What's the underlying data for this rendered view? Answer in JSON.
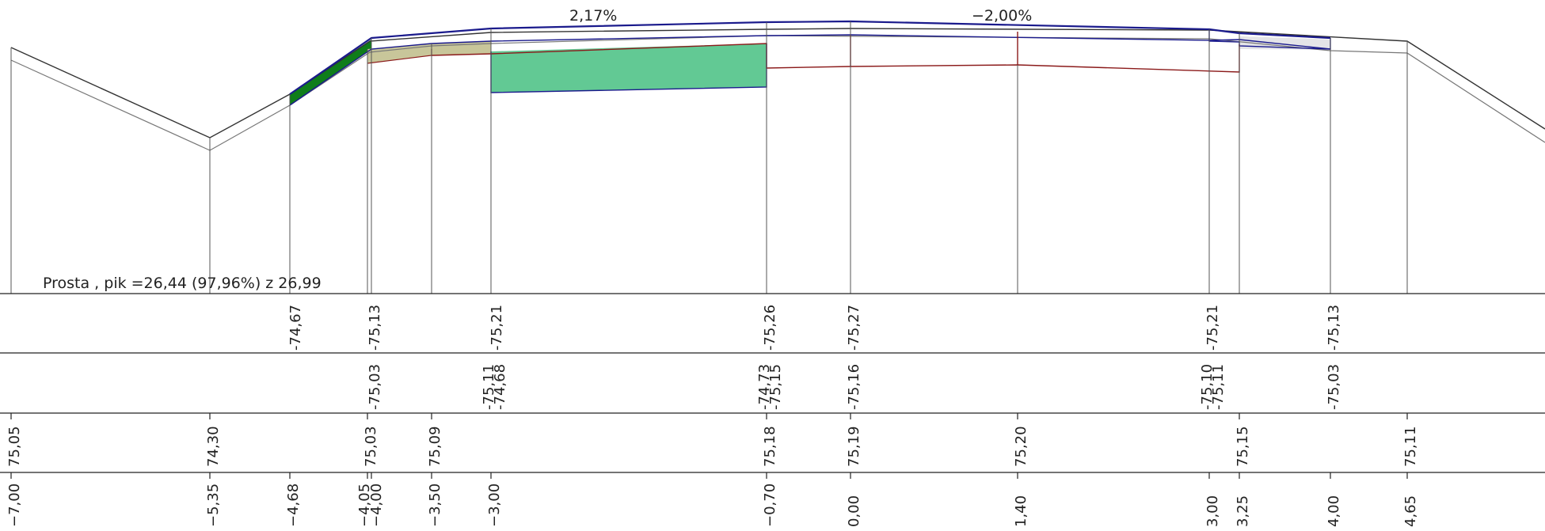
{
  "header": {
    "slope_left": "2,17%",
    "slope_right": "−2,00%",
    "section_info": "Prosta , pik =26,44 (97,96%)  z 26,99"
  },
  "rows": {
    "row1": [
      "-74,67",
      "-75,13",
      "-75,21",
      "-75,26",
      "-75,27",
      "-75,21",
      "-75,13"
    ],
    "row2": [
      "-75,03",
      "-75,11",
      "-74,68",
      "-74,73",
      "-75,15",
      "-75,16",
      "-75,10",
      "-75,11",
      "-75,03"
    ],
    "row3": [
      "75,05",
      "74,30",
      "75,03",
      "75,09",
      "75,18",
      "75,19",
      "75,20",
      "75,15",
      "75,11"
    ],
    "row4": [
      "−7,00",
      "−5,35",
      "−4,68",
      "−4,05",
      "−4,00",
      "−3,50",
      "−3,00",
      "−0,70",
      "0,00",
      "1,40",
      "3,00",
      "3,25",
      "4,00",
      "4,65"
    ]
  },
  "colors": {
    "design_line": "#1a1a8c",
    "terrain_line": "#333333",
    "subgrade_line": "#8b1a1a",
    "fill_dark_green": "#0f7d1a",
    "fill_light_green": "#62c994",
    "fill_khaki": "#c8c69a",
    "fill_grey": "#e4e4e8"
  }
}
